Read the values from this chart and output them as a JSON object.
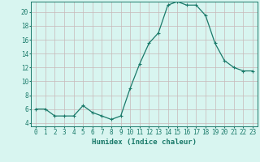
{
  "x": [
    0,
    1,
    2,
    3,
    4,
    5,
    6,
    7,
    8,
    9,
    10,
    11,
    12,
    13,
    14,
    15,
    16,
    17,
    18,
    19,
    20,
    21,
    22,
    23
  ],
  "y": [
    6,
    6,
    5,
    5,
    5,
    6.5,
    5.5,
    5,
    4.5,
    5,
    9,
    12.5,
    15.5,
    17,
    21,
    21.5,
    21,
    21,
    19.5,
    15.5,
    13,
    12,
    11.5,
    11.5
  ],
  "line_color": "#1a7a6a",
  "marker": "+",
  "marker_size": 3,
  "bg_color": "#d8f5f0",
  "grid_color": "#c8b8b8",
  "xlabel": "Humidex (Indice chaleur)",
  "xlim": [
    -0.5,
    23.5
  ],
  "ylim": [
    3.5,
    21.5
  ],
  "yticks": [
    4,
    6,
    8,
    10,
    12,
    14,
    16,
    18,
    20
  ],
  "xtick_labels": [
    "0",
    "1",
    "2",
    "3",
    "4",
    "5",
    "6",
    "7",
    "8",
    "9",
    "10",
    "11",
    "12",
    "13",
    "14",
    "15",
    "16",
    "17",
    "18",
    "19",
    "20",
    "21",
    "22",
    "23"
  ],
  "tick_color": "#1a7a6a",
  "label_fontsize": 5.5,
  "xlabel_fontsize": 6.5
}
